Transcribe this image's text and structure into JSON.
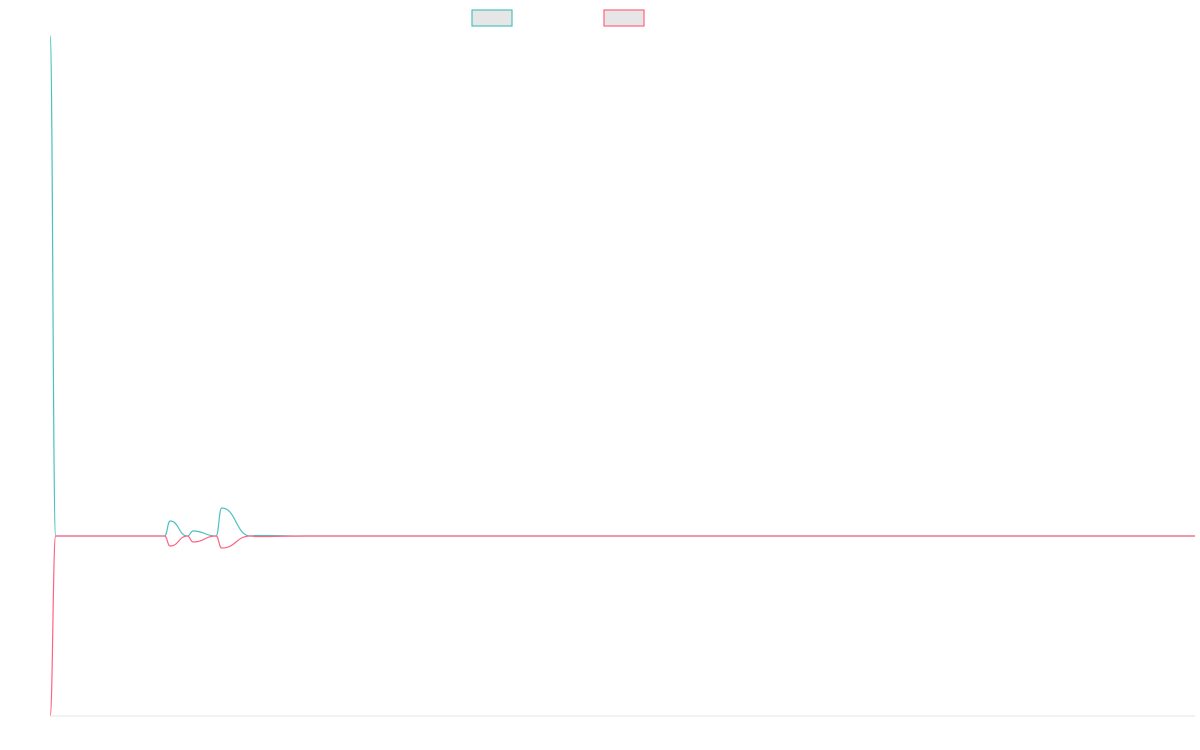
{
  "chart_data": {
    "type": "line",
    "title": "",
    "xlabel": "",
    "ylabel": "",
    "grid": false,
    "legend_placement": "top-center",
    "x": [
      0,
      1,
      20,
      21,
      24,
      25,
      29,
      30,
      35,
      36,
      45,
      200
    ],
    "series": [
      {
        "color": "#4bc0c0",
        "values": [
          1000,
          0,
          0,
          30,
          0,
          10,
          0,
          56,
          0,
          1,
          0,
          0
        ]
      },
      {
        "color": "#ff6384",
        "values": [
          -360,
          0,
          0,
          -20,
          0,
          -12,
          0,
          -24,
          0,
          -1,
          0,
          0
        ]
      }
    ],
    "xlim": [
      0,
      200
    ],
    "ylim": [
      -360,
      1000
    ]
  }
}
